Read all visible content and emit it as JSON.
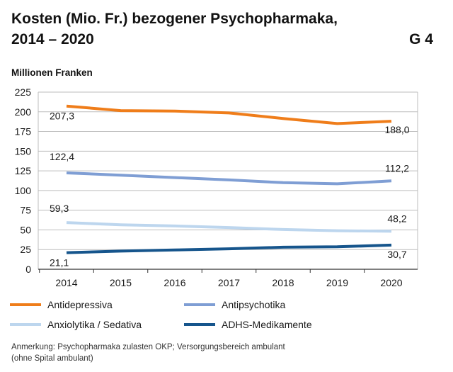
{
  "header": {
    "title_line1": "Kosten (Mio. Fr.) bezogener Psychopharmaka,",
    "title_line2": "2014 – 2020",
    "figure_code": "G 4"
  },
  "chart_data": {
    "type": "line",
    "ylabel": "Millionen Franken",
    "ylim": [
      0,
      225
    ],
    "yticks": [
      0,
      25,
      50,
      75,
      100,
      125,
      150,
      175,
      200,
      225
    ],
    "ytick_labels": [
      "0",
      "25",
      "50",
      "75",
      "100",
      "125",
      "150",
      "175",
      "200",
      "225"
    ],
    "x": [
      2014,
      2015,
      2016,
      2017,
      2018,
      2019,
      2020
    ],
    "xtick_labels": [
      "2014",
      "2015",
      "2016",
      "2017",
      "2018",
      "2019",
      "2020"
    ],
    "grid": true,
    "series": [
      {
        "name": "Antidepressiva",
        "color": "#ef7d1a",
        "values": [
          207.3,
          201.5,
          201.0,
          198.5,
          191.5,
          185.0,
          188.0
        ],
        "label_first": "207,3",
        "label_last": "188,0"
      },
      {
        "name": "Antipsychotika",
        "color": "#7f9ed4",
        "values": [
          122.4,
          119.5,
          116.5,
          113.5,
          110.0,
          108.5,
          112.2
        ],
        "label_first": "122,4",
        "label_last": "112,2"
      },
      {
        "name": "Anxiolytika / Sedativa",
        "color": "#bdd6ee",
        "values": [
          59.3,
          56.5,
          55.0,
          53.0,
          50.5,
          49.0,
          48.2
        ],
        "label_first": "59,3",
        "label_last": "48,2"
      },
      {
        "name": "ADHS-Medikamente",
        "color": "#16558c",
        "values": [
          21.1,
          23.0,
          24.5,
          26.0,
          28.0,
          28.5,
          30.7
        ],
        "label_first": "21,1",
        "label_last": "30,7"
      }
    ]
  },
  "footnote": {
    "line1": "Anmerkung: Psychopharmaka zulasten OKP; Versorgungsbereich ambulant",
    "line2": "(ohne Spital ambulant)"
  }
}
